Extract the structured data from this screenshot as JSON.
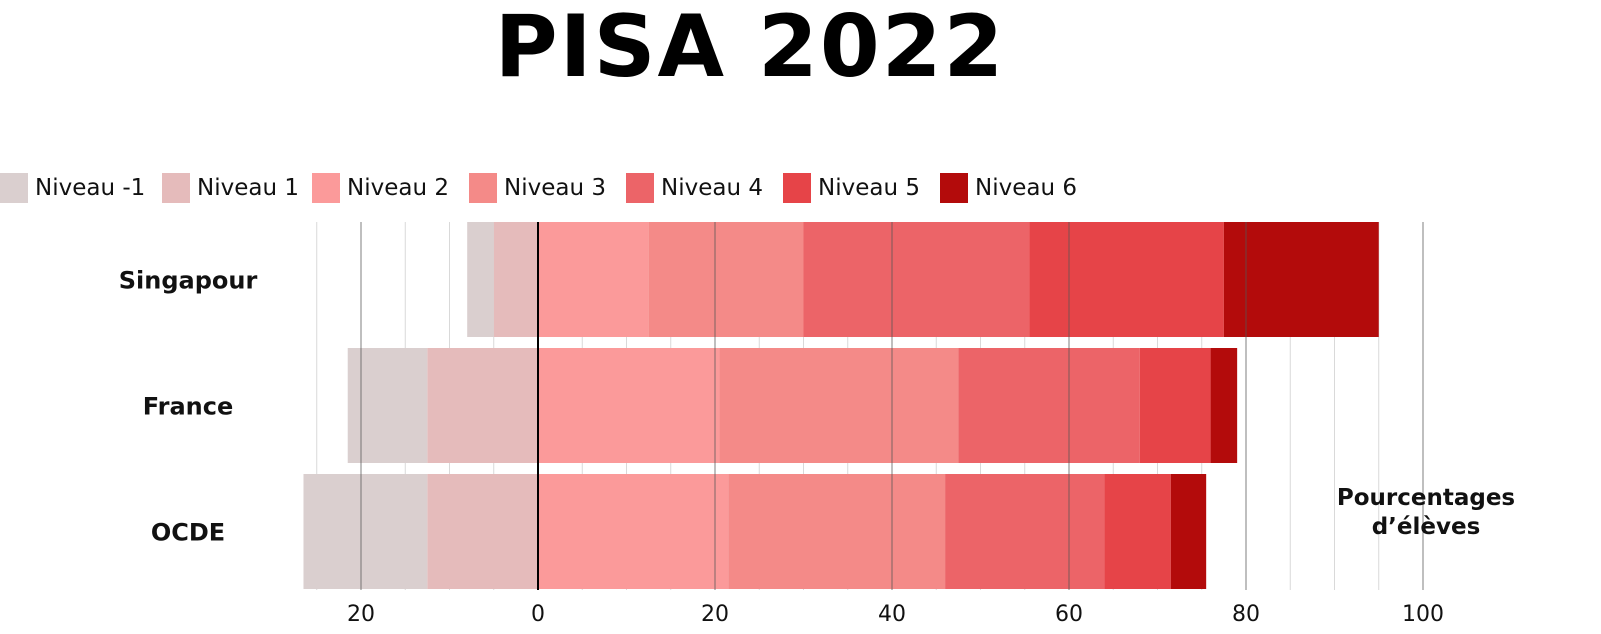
{
  "title": "PISA 2022",
  "axis_label": "Pourcentages\nd’élèves",
  "legend": [
    {
      "label": "Niveau -1",
      "color": "#dacfcf"
    },
    {
      "label": "Niveau 1",
      "color": "#e5bbbb"
    },
    {
      "label": "Niveau 2",
      "color": "#fb9a9a"
    },
    {
      "label": "Niveau 3",
      "color": "#f48a88"
    },
    {
      "label": "Niveau 4",
      "color": "#ec6468"
    },
    {
      "label": "Niveau 5",
      "color": "#e64448"
    },
    {
      "label": "Niveau 6",
      "color": "#b30b0b"
    }
  ],
  "chart_data": {
    "type": "bar",
    "orientation": "horizontal",
    "stacked": "diverging",
    "title": "PISA 2022",
    "xlabel": "Pourcentages\nd’élèves",
    "categories": [
      "Singapour",
      "France",
      "OCDE"
    ],
    "xlim": [
      -27,
      100
    ],
    "x_ticks": [
      {
        "value": -20,
        "label": "20"
      },
      {
        "value": 0,
        "label": "0"
      },
      {
        "value": 20,
        "label": "20"
      },
      {
        "value": 40,
        "label": "40"
      },
      {
        "value": 60,
        "label": "60"
      },
      {
        "value": 80,
        "label": "80"
      },
      {
        "value": 100,
        "label": "100"
      }
    ],
    "series": [
      {
        "name": "Niveau -1",
        "side": "negative",
        "values": [
          3,
          9,
          14
        ]
      },
      {
        "name": "Niveau 1",
        "side": "negative",
        "values": [
          5,
          12.5,
          12.5
        ]
      },
      {
        "name": "Niveau 2",
        "side": "positive",
        "values": [
          12.5,
          20.5,
          21.5
        ]
      },
      {
        "name": "Niveau 3",
        "side": "positive",
        "values": [
          17.5,
          27,
          24.5
        ]
      },
      {
        "name": "Niveau 4",
        "side": "positive",
        "values": [
          25.5,
          20.5,
          18
        ]
      },
      {
        "name": "Niveau 5",
        "side": "positive",
        "values": [
          22,
          8,
          7.5
        ]
      },
      {
        "name": "Niveau 6",
        "side": "positive",
        "values": [
          17.5,
          3,
          4
        ]
      }
    ],
    "grid": true,
    "legend_position": "top"
  }
}
